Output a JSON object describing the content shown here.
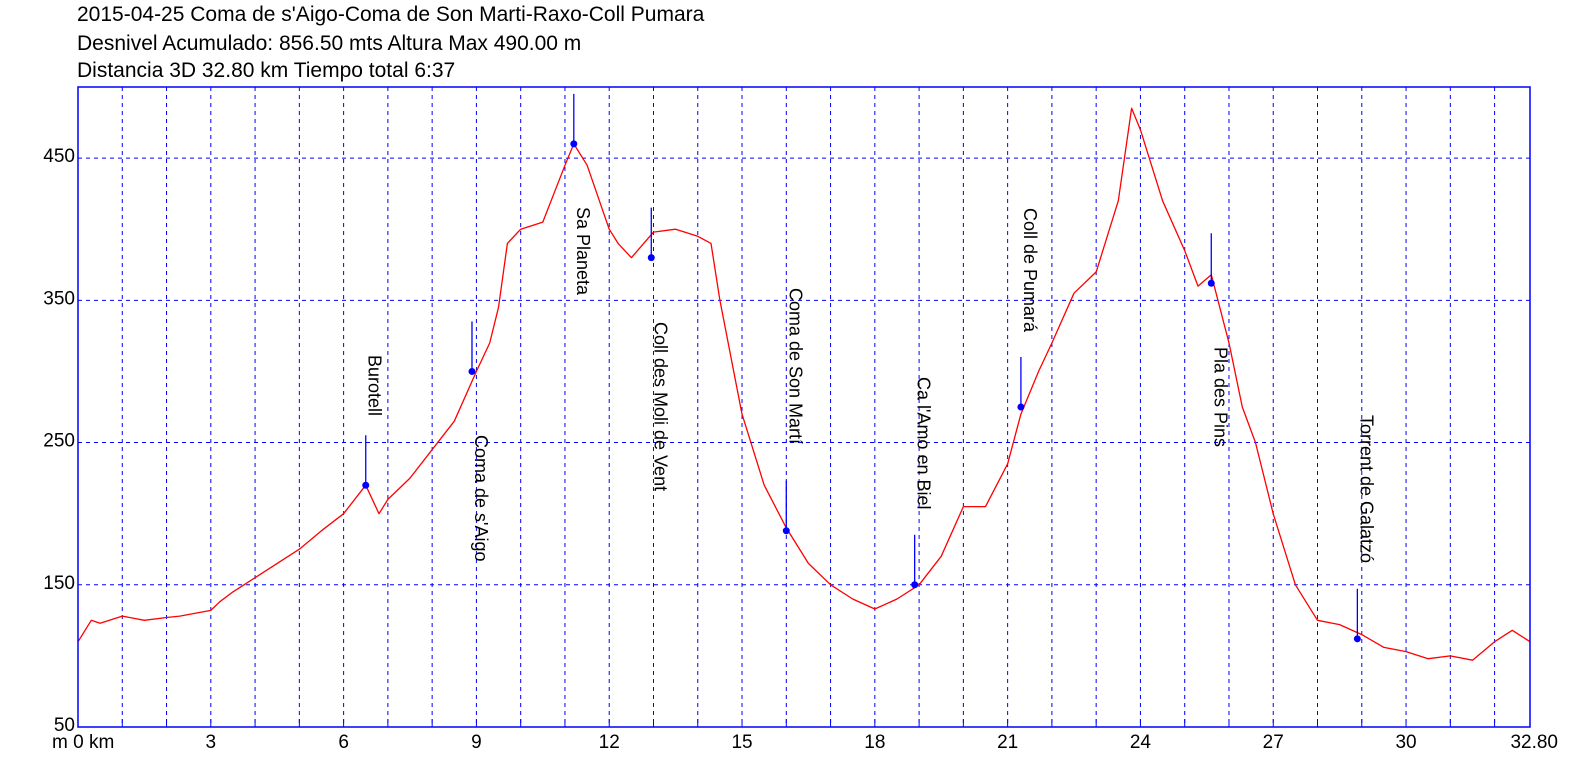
{
  "header": {
    "line1": "2015-04-25 Coma de s'Aigo-Coma de Son Marti-Raxo-Coll Pumara",
    "line2": "Desnivel Acumulado: 856.50 mts  Altura Max 490.00 m",
    "line3": "Distancia 3D 32.80 km  Tiempo total 6:37"
  },
  "colors": {
    "frame": "#0000ff",
    "grid": "#0000ff",
    "profile": "#ff0000",
    "waypoint": "#0000ff",
    "text": "#000000"
  },
  "chart_data": {
    "type": "line",
    "title": "2015-04-25 Coma de s'Aigo-Coma de Son Marti-Raxo-Coll Pumara",
    "xlabel": "km",
    "ylabel": "m",
    "xlim": [
      0,
      32.8
    ],
    "ylim": [
      50,
      500
    ],
    "grid": true,
    "x_ticks": [
      0,
      3,
      6,
      9,
      12,
      15,
      18,
      21,
      24,
      27,
      30,
      32.8
    ],
    "x_tick_labels": [
      "m 0 km",
      "3",
      "6",
      "9",
      "12",
      "15",
      "18",
      "21",
      "24",
      "27",
      "30",
      "32.80"
    ],
    "y_ticks": [
      50,
      150,
      250,
      350,
      450
    ],
    "y_tick_labels": [
      "50",
      "150",
      "250",
      "350",
      "450"
    ],
    "series": [
      {
        "x": [
          0,
          0.3,
          0.5,
          1.0,
          1.5,
          2.0,
          2.3,
          3.0,
          3.2,
          3.5,
          4.0,
          4.5,
          5.0,
          5.5,
          6.0,
          6.5,
          6.8,
          7.0,
          7.5,
          8.0,
          8.5,
          9.0,
          9.3,
          9.5,
          9.7,
          10.0,
          10.5,
          11.0,
          11.2,
          11.5,
          12.0,
          12.2,
          12.5,
          13.0,
          13.5,
          14.0,
          14.3,
          14.5,
          15.0,
          15.5,
          16.0,
          16.5,
          17.0,
          17.5,
          18.0,
          18.5,
          19.0,
          19.5,
          20.0,
          20.5,
          21.0,
          21.3,
          21.7,
          22.0,
          22.5,
          23.0,
          23.5,
          23.8,
          24.0,
          24.5,
          25.0,
          25.3,
          25.6,
          26.0,
          26.3,
          26.6,
          27.0,
          27.5,
          28.0,
          28.5,
          29.0,
          29.5,
          30.0,
          30.5,
          31.0,
          31.5,
          32.0,
          32.4,
          32.8
        ],
        "y": [
          110,
          125,
          123,
          128,
          125,
          127,
          128,
          132,
          138,
          145,
          155,
          165,
          175,
          188,
          200,
          220,
          200,
          210,
          225,
          245,
          265,
          300,
          320,
          345,
          390,
          400,
          405,
          445,
          460,
          445,
          400,
          390,
          380,
          398,
          400,
          395,
          390,
          350,
          270,
          220,
          190,
          165,
          150,
          140,
          133,
          140,
          150,
          170,
          205,
          205,
          235,
          270,
          300,
          320,
          355,
          370,
          420,
          485,
          470,
          420,
          385,
          360,
          368,
          320,
          275,
          250,
          200,
          150,
          125,
          122,
          115,
          106,
          103,
          98,
          100,
          97,
          110,
          118,
          110
        ]
      }
    ],
    "waypoints": [
      {
        "name": "Burotell",
        "x": 6.5,
        "y": 220
      },
      {
        "name": "Coma de s'Aigo",
        "x": 8.9,
        "y": 300
      },
      {
        "name": "Sa Planeta",
        "x": 11.2,
        "y": 460
      },
      {
        "name": "Coll des Moli de Vent",
        "x": 12.95,
        "y": 380
      },
      {
        "name": "Coma de Son Martí",
        "x": 16.0,
        "y": 188
      },
      {
        "name": "Ca l'Amo en Biel",
        "x": 18.9,
        "y": 150
      },
      {
        "name": "Coll de Pumará",
        "x": 21.3,
        "y": 275
      },
      {
        "name": "Pla des Pins",
        "x": 25.6,
        "y": 362
      },
      {
        "name": "Torrent de Galatzó",
        "x": 28.9,
        "y": 112
      }
    ]
  }
}
